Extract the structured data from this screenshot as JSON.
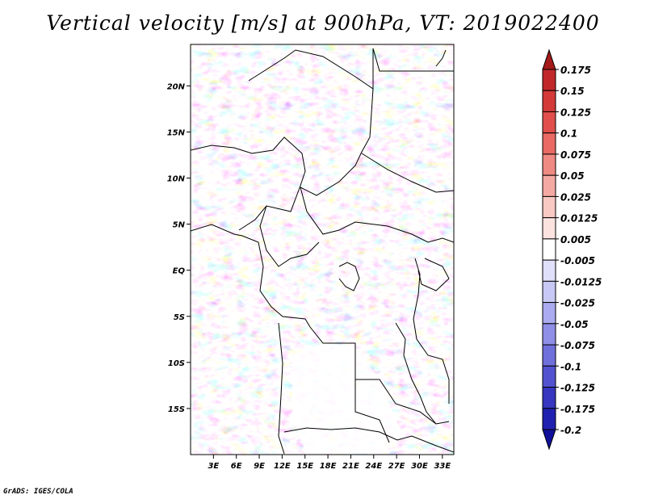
{
  "title": "Vertical velocity [m/s] at 900hPa, VT: 2019022400",
  "credit": "GrADS: IGES/COLA",
  "map": {
    "lat_labels": [
      "20N",
      "15N",
      "10N",
      "5N",
      "EQ",
      "5S",
      "10S",
      "15S"
    ],
    "lat_values": [
      20,
      15,
      10,
      5,
      0,
      -5,
      -10,
      -15
    ],
    "lon_labels": [
      "3E",
      "6E",
      "9E",
      "12E",
      "15E",
      "18E",
      "21E",
      "24E",
      "27E",
      "30E",
      "33E"
    ],
    "lon_values": [
      3,
      6,
      9,
      12,
      15,
      18,
      21,
      24,
      27,
      30,
      33
    ],
    "lon_range": [
      0,
      34.5
    ],
    "lat_range": [
      -20,
      24.5
    ]
  },
  "colorbar": {
    "labels": [
      "0.175",
      "0.15",
      "0.125",
      "0.1",
      "0.075",
      "0.05",
      "0.025",
      "0.0125",
      "0.005",
      "-0.005",
      "-0.0125",
      "-0.025",
      "-0.05",
      "-0.075",
      "-0.1",
      "-0.125",
      "-0.175",
      "-0.2"
    ],
    "colors": [
      "#a51a1a",
      "#c0282a",
      "#d33a38",
      "#e04f4b",
      "#e86a63",
      "#ef8a82",
      "#f4aaa3",
      "#f8c8c2",
      "#fbe4e0",
      "#ffffff",
      "#e0e0fa",
      "#c8c8f4",
      "#ababef",
      "#8f8fe6",
      "#7070dc",
      "#5252d0",
      "#3636c0",
      "#2020b0",
      "#10109a"
    ]
  }
}
